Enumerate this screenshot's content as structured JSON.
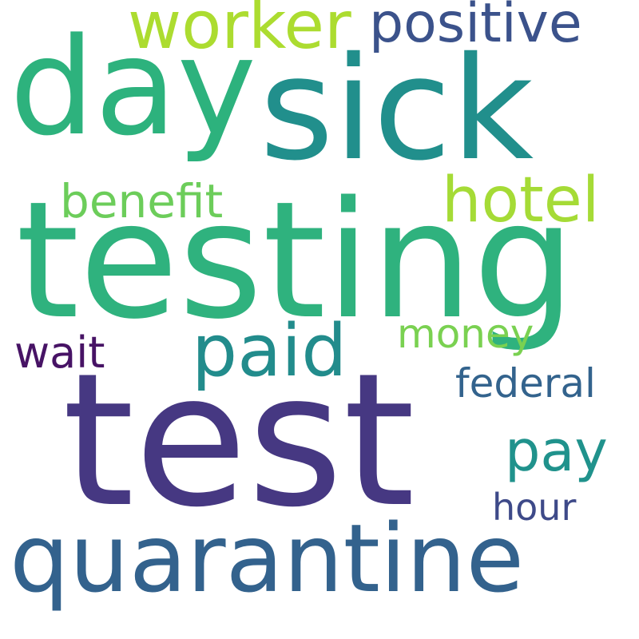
{
  "words": [
    {
      "id": "test",
      "text": "test",
      "color": "#463882"
    },
    {
      "id": "testing",
      "text": "testing",
      "color": "#2fb27e"
    },
    {
      "id": "sick",
      "text": "sick",
      "color": "#218f8c"
    },
    {
      "id": "day",
      "text": "day",
      "color": "#2db27d"
    },
    {
      "id": "quarantine",
      "text": "quarantine",
      "color": "#33628d"
    },
    {
      "id": "paid",
      "text": "paid",
      "color": "#228c8c"
    },
    {
      "id": "worker",
      "text": "worker",
      "color": "#acdc30"
    },
    {
      "id": "hotel",
      "text": "hotel",
      "color": "#a5db36"
    },
    {
      "id": "positive",
      "text": "positive",
      "color": "#3b528b"
    },
    {
      "id": "pay",
      "text": "pay",
      "color": "#20928c"
    },
    {
      "id": "benefit",
      "text": "benefit",
      "color": "#6ccd5a"
    },
    {
      "id": "money",
      "text": "money",
      "color": "#7ad151"
    },
    {
      "id": "federal",
      "text": "federal",
      "color": "#33638d"
    },
    {
      "id": "wait",
      "text": "wait",
      "color": "#471365"
    },
    {
      "id": "hour",
      "text": "hour",
      "color": "#3e4a89"
    }
  ]
}
